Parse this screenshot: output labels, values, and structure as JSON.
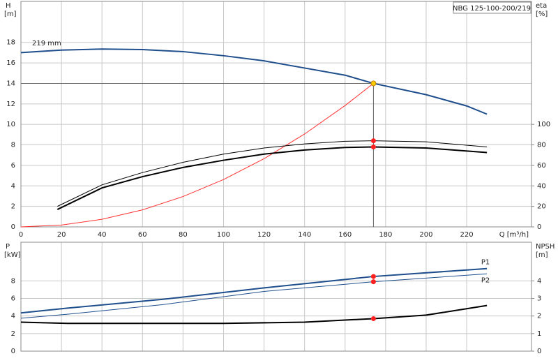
{
  "chart_data": [
    {
      "type": "line",
      "title": "NBG 125-100-200/219",
      "annotation": "219 mm",
      "ylabel": "H",
      "yunit": "[m]",
      "y2label": "eta",
      "y2unit": "[%]",
      "xlabel": "Q [m³/h]",
      "xlim": [
        0,
        252
      ],
      "xticks": [
        0,
        20,
        40,
        60,
        80,
        100,
        120,
        140,
        160,
        180,
        200,
        220
      ],
      "ylim": [
        0,
        22
      ],
      "yticks": [
        0,
        2,
        4,
        6,
        8,
        10,
        12,
        14,
        16,
        18
      ],
      "y2lim": [
        0,
        220
      ],
      "y2ticks": [
        0,
        20,
        40,
        60,
        80,
        100
      ],
      "grid": true,
      "show_xtick_labels": true,
      "series": [
        {
          "color": "#1f4e8c",
          "width": 2,
          "style": "line",
          "axis": "y",
          "x": [
            0,
            20,
            40,
            60,
            80,
            100,
            120,
            140,
            160,
            174,
            200,
            220,
            230
          ],
          "values": [
            17.0,
            17.25,
            17.35,
            17.3,
            17.1,
            16.7,
            16.2,
            15.5,
            14.8,
            14.0,
            12.9,
            11.8,
            11.0
          ]
        },
        {
          "color": "#ff3030",
          "width": 1,
          "style": "line",
          "axis": "y",
          "x": [
            0,
            20,
            40,
            60,
            80,
            100,
            120,
            140,
            160,
            174
          ],
          "values": [
            0,
            0.18,
            0.74,
            1.66,
            2.96,
            4.62,
            6.65,
            9.06,
            11.84,
            14.0
          ]
        },
        {
          "color": "#000000",
          "width": 1,
          "style": "line",
          "axis": "y2",
          "x": [
            18,
            40,
            60,
            80,
            100,
            120,
            140,
            160,
            174,
            200,
            230
          ],
          "values": [
            20,
            41,
            53,
            63,
            71,
            77,
            81,
            83.5,
            84,
            83,
            78
          ]
        },
        {
          "color": "#000000",
          "width": 2,
          "style": "line",
          "axis": "y2",
          "x": [
            18,
            40,
            60,
            80,
            100,
            120,
            140,
            160,
            174,
            200,
            230
          ],
          "values": [
            17,
            38,
            49,
            58,
            65,
            71,
            75,
            77.5,
            78,
            77,
            72.5
          ]
        },
        {
          "color": "#ffcc00",
          "width": 1,
          "style": "dots",
          "axis": "y",
          "crosshair": true,
          "x": [
            174
          ],
          "values": [
            14.0
          ]
        },
        {
          "color": "#ff2020",
          "width": 1,
          "style": "dots",
          "axis": "y2",
          "x": [
            174,
            174
          ],
          "values": [
            84,
            78
          ]
        }
      ]
    },
    {
      "type": "line",
      "ylabel": "P",
      "yunit": "[kW]",
      "y2label": "NPSH",
      "y2unit": "[m]",
      "xlim": [
        0,
        252
      ],
      "xticks": [
        0,
        20,
        40,
        60,
        80,
        100,
        120,
        140,
        160,
        180,
        200,
        220
      ],
      "ylim": [
        0,
        12.4
      ],
      "yticks": [
        0,
        2,
        4,
        6,
        8
      ],
      "y2lim": [
        0,
        6.2
      ],
      "y2ticks": [
        0,
        1,
        2,
        3,
        4
      ],
      "grid": true,
      "show_xtick_labels": false,
      "series": [
        {
          "name": "P1",
          "color": "#1f4e8c",
          "width": 2,
          "style": "line",
          "axis": "y",
          "x": [
            0,
            23,
            70,
            120,
            174,
            230
          ],
          "values": [
            4.35,
            4.9,
            5.9,
            7.2,
            8.5,
            9.4
          ]
        },
        {
          "name": "P2",
          "color": "#1f4e8c",
          "width": 1,
          "style": "line",
          "axis": "y",
          "x": [
            0,
            23,
            70,
            120,
            174,
            230
          ],
          "values": [
            3.75,
            4.2,
            5.3,
            6.8,
            7.9,
            8.8
          ]
        },
        {
          "color": "#000000",
          "width": 2,
          "style": "line",
          "axis": "y2",
          "x": [
            0,
            23,
            100,
            140,
            174,
            200,
            230
          ],
          "values": [
            1.65,
            1.58,
            1.58,
            1.65,
            1.85,
            2.05,
            2.6
          ]
        },
        {
          "color": "#ff2020",
          "width": 1,
          "style": "dots",
          "axis": "y",
          "x": [
            174,
            174
          ],
          "values": [
            8.5,
            7.9
          ]
        },
        {
          "color": "#ff2020",
          "width": 1,
          "style": "dots",
          "axis": "y2",
          "x": [
            174
          ],
          "values": [
            1.85
          ]
        }
      ]
    }
  ]
}
